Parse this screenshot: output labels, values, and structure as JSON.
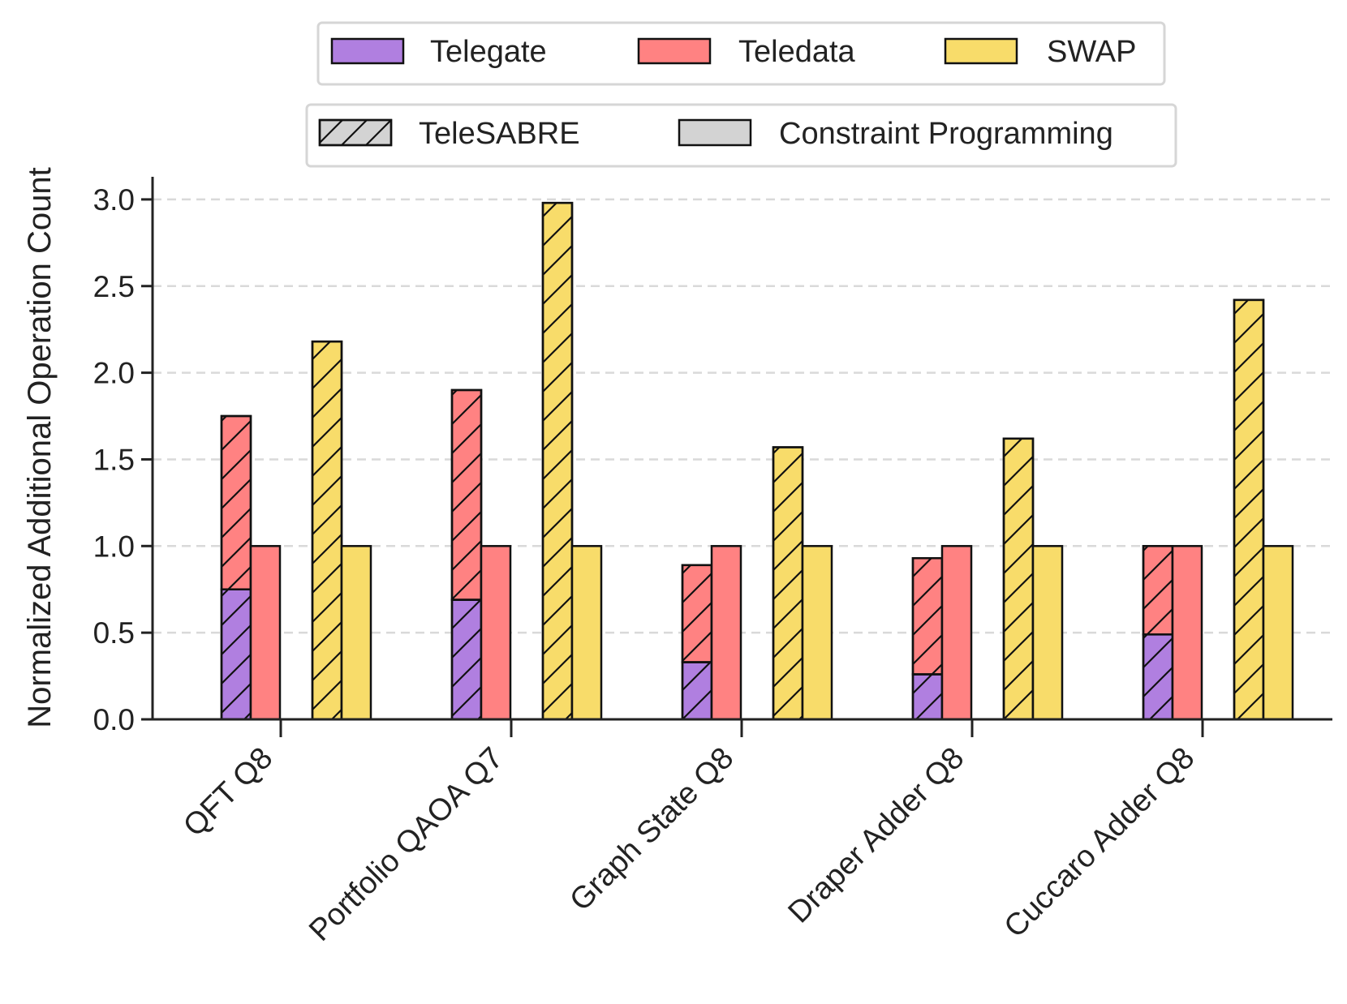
{
  "chart_data": {
    "type": "bar",
    "title": "",
    "xlabel": "",
    "ylabel": "Normalized Additional Operation Count",
    "ylim": [
      0,
      3.13
    ],
    "yticks": [
      "0.0",
      "0.5",
      "1.0",
      "1.5",
      "2.0",
      "2.5",
      "3.0"
    ],
    "ytick_values": [
      0,
      0.5,
      1.0,
      1.5,
      2.0,
      2.5,
      3.0
    ],
    "grid": "y-dashed",
    "categories": [
      "QFT Q8",
      "Portfolio QAOA Q7",
      "Graph State Q8",
      "Draper Adder Q8",
      "Cuccaro Adder Q8"
    ],
    "legend_operations": {
      "placement": "top",
      "entries": [
        {
          "name": "Telegate",
          "color": "#b07fe0"
        },
        {
          "name": "Teledata",
          "color": "#ff8282"
        },
        {
          "name": "SWAP",
          "color": "#f8dc6a"
        }
      ]
    },
    "legend_methods": {
      "placement": "top",
      "entries": [
        {
          "name": "TeleSABRE",
          "pattern": "hatched",
          "color": "#d3d3d3"
        },
        {
          "name": "Constraint Programming",
          "pattern": "solid",
          "color": "#d3d3d3"
        }
      ]
    },
    "series": [
      {
        "name": "TeleSABRE Telegate",
        "method": "TeleSABRE",
        "op": "Telegate",
        "values": [
          0.75,
          0.69,
          0.33,
          0.26,
          0.49
        ]
      },
      {
        "name": "TeleSABRE Teledata",
        "method": "TeleSABRE",
        "op": "Teledata",
        "values": [
          1.0,
          1.21,
          0.56,
          0.67,
          0.51
        ]
      },
      {
        "name": "Constraint Programming Teledata",
        "method": "Constraint Programming",
        "op": "Teledata",
        "values": [
          1.0,
          1.0,
          1.0,
          1.0,
          1.0
        ]
      },
      {
        "name": "TeleSABRE SWAP",
        "method": "TeleSABRE",
        "op": "SWAP",
        "values": [
          2.18,
          2.98,
          1.57,
          1.62,
          2.42
        ]
      },
      {
        "name": "Constraint Programming SWAP",
        "method": "Constraint Programming",
        "op": "SWAP",
        "values": [
          1.0,
          1.0,
          1.0,
          1.0,
          1.0
        ]
      }
    ]
  }
}
